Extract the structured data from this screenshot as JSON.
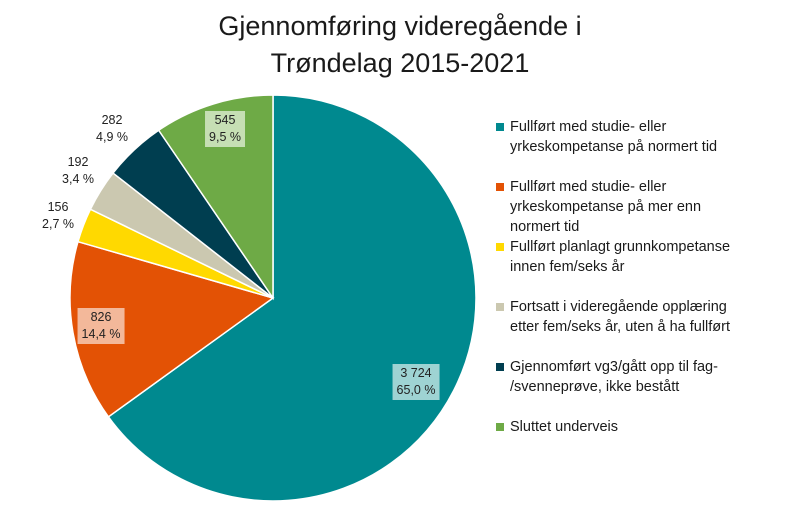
{
  "title": {
    "line1": "Gjennomføring videregående i",
    "line2": "Trøndelag 2015-2021"
  },
  "chart_data": {
    "type": "pie",
    "title": "Gjennomføring videregående i Trøndelag 2015-2021",
    "start_angle_deg": 0,
    "direction": "clockwise",
    "legend_position": "right",
    "slices": [
      {
        "label": "Fullført med studie- eller yrkeskompetanse på normert tid",
        "value": 3724,
        "value_label": "3 724",
        "percent": 65.0,
        "percent_label": "65,0 %",
        "color": "#00898F",
        "label_bg": "#9ED3D3"
      },
      {
        "label": "Fullført med studie- eller yrkeskompetanse på mer enn normert tid",
        "value": 826,
        "value_label": "826",
        "percent": 14.4,
        "percent_label": "14,4 %",
        "color": "#E35205",
        "label_bg": "#F3B89A"
      },
      {
        "label": "Fullført planlagt grunnkompetanse innen fem/seks år",
        "value": 156,
        "value_label": "156",
        "percent": 2.7,
        "percent_label": "2,7 %",
        "color": "#FFD900",
        "label_bg": ""
      },
      {
        "label": "Fortsatt i videregående opplæring etter fem/seks år, uten å ha fullført",
        "value": 192,
        "value_label": "192",
        "percent": 3.4,
        "percent_label": "3,4 %",
        "color": "#CBC8B0",
        "label_bg": ""
      },
      {
        "label": "Gjennomført vg3/gått opp til fag-/svenneprøve, ikke bestått",
        "value": 282,
        "value_label": "282",
        "percent": 4.9,
        "percent_label": "4,9 %",
        "color": "#003E50",
        "label_bg": ""
      },
      {
        "label": "Sluttet underveis",
        "value": 545,
        "value_label": "545",
        "percent": 9.5,
        "percent_label": "9,5 %",
        "color": "#6EAA46",
        "label_bg": "#C6DFB4"
      }
    ]
  },
  "legend": {
    "items": [
      {
        "line1": "Fullført med studie- eller",
        "line2": "yrkeskompetanse på normert tid",
        "line3": "",
        "color": "#00898F"
      },
      {
        "line1": "Fullført med studie- eller",
        "line2": "yrkeskompetanse på mer enn",
        "line3": "normert tid",
        "color": "#E35205"
      },
      {
        "line1": "Fullført planlagt grunnkompetanse",
        "line2": "innen fem/seks år",
        "line3": "",
        "color": "#FFD900"
      },
      {
        "line1": "Fortsatt i videregående opplæring",
        "line2": "etter fem/seks år, uten å ha fullført",
        "line3": "",
        "color": "#CBC8B0"
      },
      {
        "line1": "Gjennomført vg3/gått opp til fag-",
        "line2": "/svenneprøve, ikke bestått",
        "line3": "",
        "color": "#003E50"
      },
      {
        "line1": "Sluttet underveis",
        "line2": "",
        "line3": "",
        "color": "#6EAA46"
      }
    ]
  },
  "data_labels": [
    {
      "value": "3 724",
      "percent": "65,0 %"
    },
    {
      "value": "826",
      "percent": "14,4 %"
    },
    {
      "value": "156",
      "percent": "2,7 %"
    },
    {
      "value": "192",
      "percent": "3,4 %"
    },
    {
      "value": "282",
      "percent": "4,9 %"
    },
    {
      "value": "545",
      "percent": "9,5 %"
    }
  ]
}
